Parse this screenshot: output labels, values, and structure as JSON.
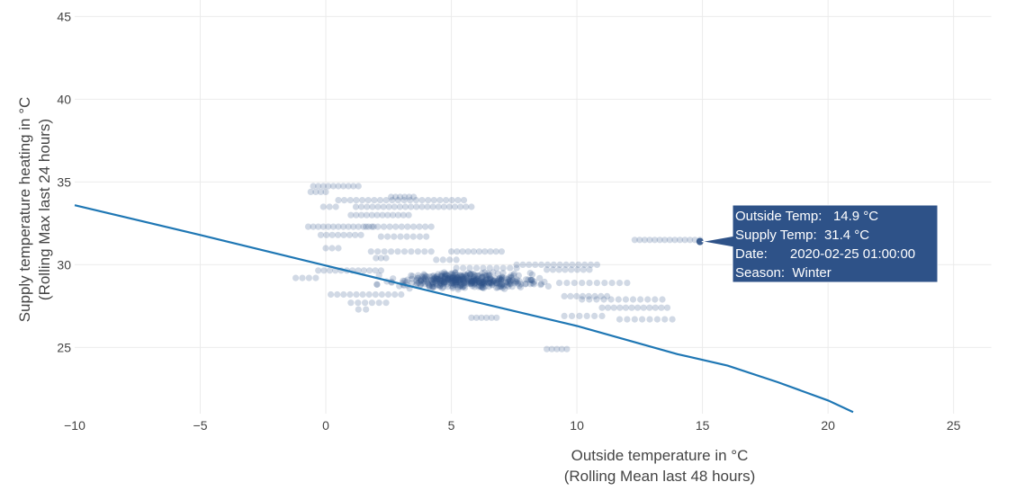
{
  "chart_data": {
    "type": "scatter",
    "xlabel": [
      "Outside temperature in °C",
      "(Rolling Mean last 48 hours)"
    ],
    "ylabel": [
      "Supply temperature heating in °C",
      "(Rolling Max last 24 hours)"
    ],
    "xlim": [
      -10,
      26.5
    ],
    "ylim": [
      21,
      46
    ],
    "xticks": [
      -10,
      -5,
      0,
      5,
      10,
      15,
      20,
      25
    ],
    "xtick_labels": [
      "−10",
      "−5",
      "0",
      "5",
      "10",
      "15",
      "20",
      "25"
    ],
    "yticks": [
      25,
      30,
      35,
      40,
      45
    ],
    "ytick_labels": [
      "25",
      "30",
      "35",
      "40",
      "45"
    ],
    "grid": true,
    "colors": {
      "points": "#2e5288",
      "line": "#1f77b4",
      "grid": "#ebebeb",
      "tooltip": "#2e5288"
    },
    "clusters": [
      {
        "x": [
          -0.5,
          1.3
        ],
        "y": [
          34.75,
          34.75
        ],
        "n": 10
      },
      {
        "x": [
          -0.6,
          0.0
        ],
        "y": [
          34.4,
          34.4
        ],
        "n": 4
      },
      {
        "x": [
          0.5,
          5.5
        ],
        "y": [
          33.9,
          33.9
        ],
        "n": 22
      },
      {
        "x": [
          2.6,
          3.5
        ],
        "y": [
          34.1,
          34.1
        ],
        "n": 6
      },
      {
        "x": [
          1.2,
          5.8
        ],
        "y": [
          33.5,
          33.5
        ],
        "n": 22
      },
      {
        "x": [
          -0.1,
          0.4
        ],
        "y": [
          33.5,
          33.5
        ],
        "n": 3
      },
      {
        "x": [
          1.0,
          3.3
        ],
        "y": [
          33.0,
          33.0
        ],
        "n": 12
      },
      {
        "x": [
          -0.7,
          1.9
        ],
        "y": [
          32.3,
          32.3
        ],
        "n": 14
      },
      {
        "x": [
          1.6,
          4.2
        ],
        "y": [
          32.3,
          32.3
        ],
        "n": 12
      },
      {
        "x": [
          -0.2,
          1.4
        ],
        "y": [
          31.8,
          31.8
        ],
        "n": 8
      },
      {
        "x": [
          2.2,
          4.0
        ],
        "y": [
          31.7,
          31.7
        ],
        "n": 8
      },
      {
        "x": [
          0.0,
          0.5
        ],
        "y": [
          31.0,
          31.0
        ],
        "n": 3
      },
      {
        "x": [
          5.0,
          7.0
        ],
        "y": [
          30.8,
          30.8
        ],
        "n": 10
      },
      {
        "x": [
          1.8,
          4.2
        ],
        "y": [
          30.8,
          30.8
        ],
        "n": 10
      },
      {
        "x": [
          2.0,
          2.4
        ],
        "y": [
          30.4,
          30.4
        ],
        "n": 3
      },
      {
        "x": [
          4.4,
          5.2
        ],
        "y": [
          30.3,
          30.3
        ],
        "n": 4
      },
      {
        "x": [
          -1.2,
          -0.4
        ],
        "y": [
          29.2,
          29.2
        ],
        "n": 4
      },
      {
        "x": [
          -0.3,
          2.2
        ],
        "y": [
          29.65,
          29.65
        ],
        "n": 12
      },
      {
        "x": [
          5.2,
          7.6
        ],
        "y": [
          29.8,
          29.8
        ],
        "n": 10
      },
      {
        "x": [
          7.6,
          10.8
        ],
        "y": [
          30.0,
          30.0
        ],
        "n": 14
      },
      {
        "x": [
          8.8,
          10.5
        ],
        "y": [
          29.7,
          29.7
        ],
        "n": 8
      },
      {
        "x": [
          1.5,
          9.5
        ],
        "y": [
          28.5,
          29.6
        ],
        "n": 420
      },
      {
        "x": [
          0.2,
          3.0
        ],
        "y": [
          28.2,
          28.2
        ],
        "n": 12
      },
      {
        "x": [
          1.0,
          2.4
        ],
        "y": [
          27.7,
          27.7
        ],
        "n": 6
      },
      {
        "x": [
          1.3,
          1.6
        ],
        "y": [
          27.3,
          27.3
        ],
        "n": 2
      },
      {
        "x": [
          9.3,
          12.0
        ],
        "y": [
          28.9,
          28.9
        ],
        "n": 10
      },
      {
        "x": [
          9.5,
          11.2
        ],
        "y": [
          28.1,
          28.1
        ],
        "n": 8
      },
      {
        "x": [
          10.2,
          13.4
        ],
        "y": [
          27.9,
          27.9
        ],
        "n": 12
      },
      {
        "x": [
          11.0,
          13.6
        ],
        "y": [
          27.4,
          27.4
        ],
        "n": 12
      },
      {
        "x": [
          11.7,
          13.8
        ],
        "y": [
          26.7,
          26.7
        ],
        "n": 8
      },
      {
        "x": [
          9.5,
          11.0
        ],
        "y": [
          26.9,
          26.9
        ],
        "n": 6
      },
      {
        "x": [
          5.8,
          6.8
        ],
        "y": [
          26.8,
          26.8
        ],
        "n": 6
      },
      {
        "x": [
          8.8,
          9.6
        ],
        "y": [
          24.9,
          24.9
        ],
        "n": 5
      },
      {
        "x": [
          12.3,
          14.9
        ],
        "y": [
          31.5,
          31.5
        ],
        "n": 14
      }
    ],
    "line": {
      "x": [
        -10,
        -5,
        0,
        5,
        10,
        14,
        16,
        18,
        20,
        21
      ],
      "y": [
        33.6,
        31.8,
        29.95,
        28.1,
        26.3,
        24.6,
        23.9,
        22.9,
        21.8,
        21.1
      ]
    },
    "hover_point": {
      "x": 14.9,
      "y": 31.4
    },
    "tooltip": {
      "lines": [
        "Outside Temp:   14.9 °C",
        "Supply Temp:  31.4 °C",
        "Date:      2020-02-25 01:00:00",
        "Season:  Winter"
      ]
    }
  }
}
